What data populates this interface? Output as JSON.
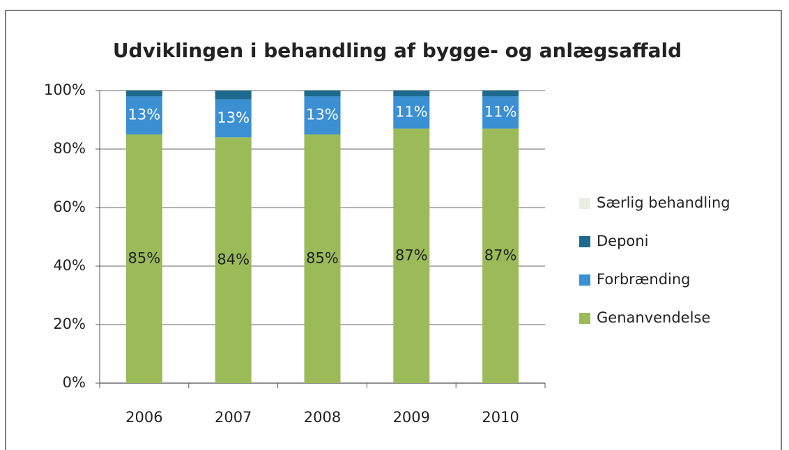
{
  "chart_data": {
    "type": "stacked_bar",
    "title": "Udviklingen i behandling af bygge- og anlægsaffald",
    "categories": [
      "2006",
      "2007",
      "2008",
      "2009",
      "2010"
    ],
    "series": [
      {
        "name": "Genanvendelse",
        "color": "#9bbb59",
        "values": [
          85,
          84,
          85,
          87,
          87
        ],
        "value_labels": [
          "85%",
          "84%",
          "85%",
          "87%",
          "87%"
        ]
      },
      {
        "name": "Forbrænding",
        "color": "#3b8fd3",
        "values": [
          13,
          13,
          13,
          11,
          11
        ],
        "value_labels": [
          "13%",
          "13%",
          "13%",
          "11%",
          "11%"
        ]
      },
      {
        "name": "Deponi",
        "color": "#1d6a8e",
        "values": [
          2,
          3,
          2,
          2,
          2
        ]
      },
      {
        "name": "Særlig behandling",
        "color": "#e9ede4",
        "values": [
          0,
          0,
          0,
          0,
          0
        ]
      }
    ],
    "ylim": [
      0,
      100
    ],
    "yticks": [
      {
        "value": 0,
        "label": "0%"
      },
      {
        "value": 20,
        "label": "20%"
      },
      {
        "value": 40,
        "label": "40%"
      },
      {
        "value": 60,
        "label": "60%"
      },
      {
        "value": 80,
        "label": "80%"
      },
      {
        "value": 100,
        "label": "100%"
      }
    ],
    "grid": true,
    "legend": "right"
  }
}
